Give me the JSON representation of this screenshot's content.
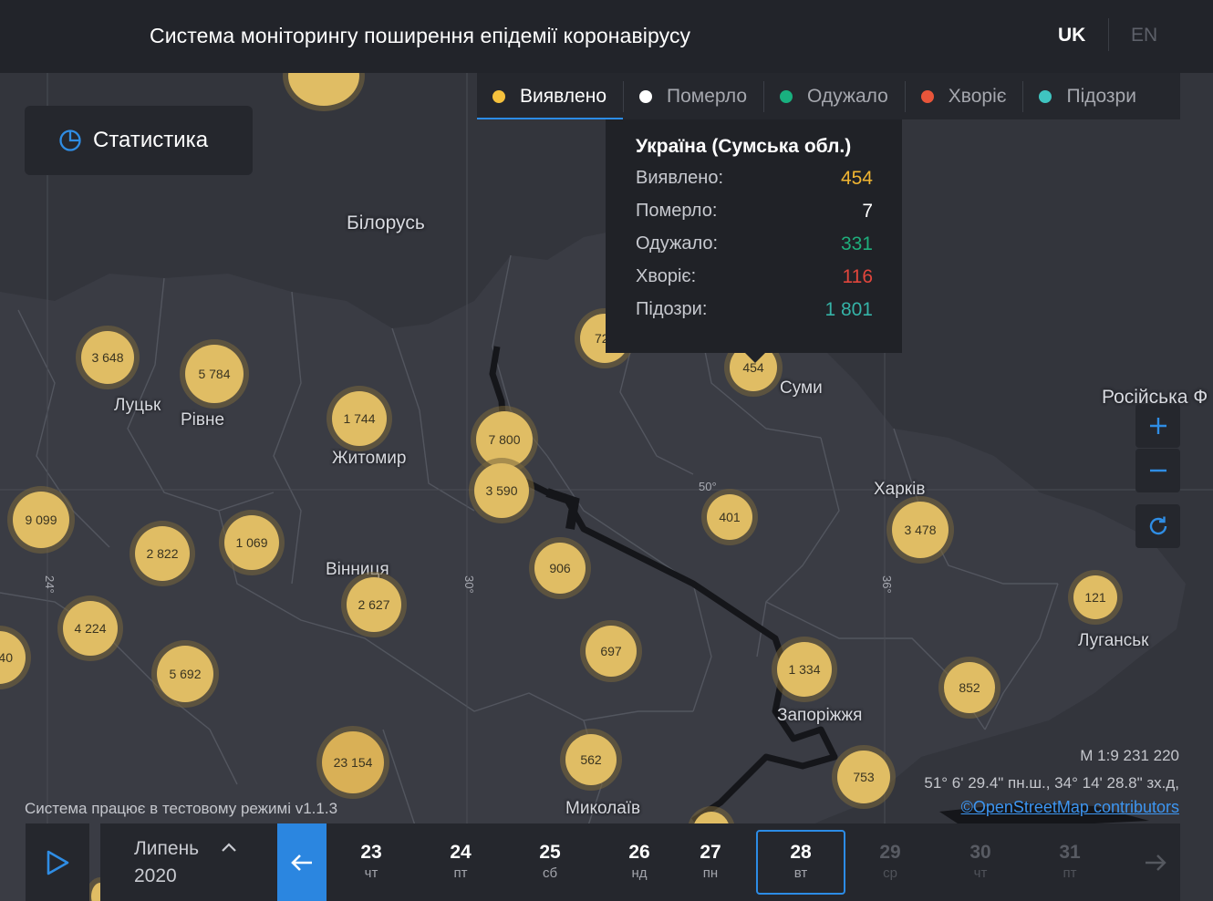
{
  "header": {
    "title": "Система моніторингу поширення епідемії коронавірусу",
    "lang_uk": "UK",
    "lang_en": "EN"
  },
  "stats_button": {
    "label": "Статистика",
    "icon": "pie-chart-icon"
  },
  "tabs": [
    {
      "label": "Виявлено",
      "color": "#f5c13d",
      "active": true
    },
    {
      "label": "Померло",
      "color": "#ffffff",
      "active": false
    },
    {
      "label": "Одужало",
      "color": "#19b07f",
      "active": false
    },
    {
      "label": "Хворіє",
      "color": "#e8553a",
      "active": false
    },
    {
      "label": "Підозри",
      "color": "#3fc4c0",
      "active": false
    }
  ],
  "tooltip": {
    "title": "Україна (Сумська обл.)",
    "rows": [
      {
        "label": "Виявлено:",
        "value": "454",
        "color": "#f0b532"
      },
      {
        "label": "Померло:",
        "value": "7",
        "color": "#ffffff"
      },
      {
        "label": "Одужало:",
        "value": "331",
        "color": "#1fae7c"
      },
      {
        "label": "Хворіє:",
        "value": "116",
        "color": "#e2463c"
      },
      {
        "label": "Підозри:",
        "value": "1 801",
        "color": "#35b3a7"
      }
    ]
  },
  "map": {
    "countries": {
      "belarus": "Білорусь",
      "russia": "Російська Ф"
    },
    "cities": {
      "lutsk": "Луцьк",
      "rivne": "Рівне",
      "zhytomyr": "Житомир",
      "vinnytsia": "Вінниця",
      "sumy": "Суми",
      "kharkiv": "Харків",
      "zaporizhzhia": "Запоріжжя",
      "luhansk": "Луганськ",
      "mykolaiv": "Миколаїв"
    },
    "graticule": {
      "m24": "24°",
      "m30": "30°",
      "m36": "36°",
      "p50": "50°"
    },
    "clusters": {
      "volyn": "3 648",
      "rivne": "5 784",
      "zhytomyr": "1 744",
      "kyiv_city": "7 800",
      "kyiv_obl": "3 590",
      "chernihiv": "72",
      "sumy": "454",
      "lviv": "9 099",
      "ternopil": "2 822",
      "khmelnytskyi": "1 069",
      "vinnytsia": "2 627",
      "ivano_frankivsk": "4 224",
      "chernivtsi": "5 692",
      "zakarpattia": "40",
      "cherkasy": "906",
      "poltava": "401",
      "kharkiv": "3 478",
      "kirovohrad": "697",
      "dnipro": "1 334",
      "luhansk": "121",
      "donetsk": "852",
      "mykolaiv": "562",
      "odesa": "23 154",
      "zaporizhzhia": "753"
    },
    "scale": "М 1:9 231 220",
    "coordinates": "51° 6' 29.4\" пн.ш., 34° 14' 28.8\" зх.д,",
    "attribution": "©OpenStreetMap contributors",
    "test_mode": "Система працює в тестовому режимі v1.1.3"
  },
  "timeline": {
    "month": "Липень",
    "year": "2020",
    "days": [
      {
        "num": "23",
        "wd": "чт",
        "state": "past"
      },
      {
        "num": "24",
        "wd": "пт",
        "state": "past"
      },
      {
        "num": "25",
        "wd": "сб",
        "state": "past"
      },
      {
        "num": "26",
        "wd": "нд",
        "state": "past"
      },
      {
        "num": "27",
        "wd": "пн",
        "state": "past"
      },
      {
        "num": "28",
        "wd": "вт",
        "state": "selected"
      },
      {
        "num": "29",
        "wd": "ср",
        "state": "future"
      },
      {
        "num": "30",
        "wd": "чт",
        "state": "future"
      },
      {
        "num": "31",
        "wd": "пт",
        "state": "future"
      }
    ]
  },
  "colors": {
    "accent": "#2c8ce6",
    "cluster": "#e0bd64",
    "panel": "#25272d",
    "header": "#22242a"
  }
}
